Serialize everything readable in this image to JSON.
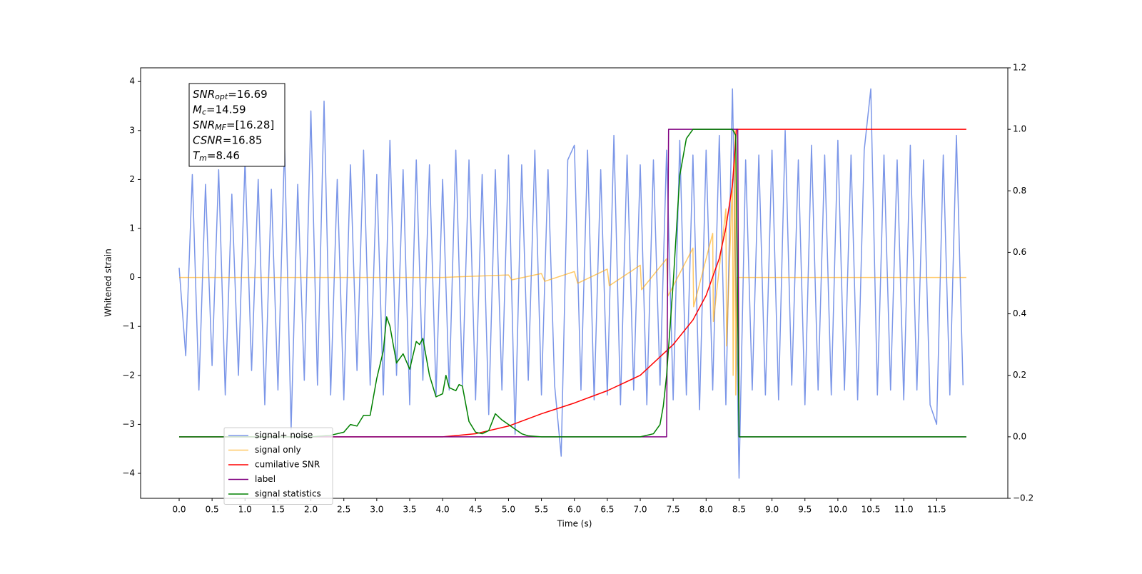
{
  "chart_data": {
    "type": "line",
    "xlabel": "Time (s)",
    "ylabel": "Whitened strain",
    "xlim": [
      -0.585,
      12.58
    ],
    "ylim": [
      -4.51,
      4.28
    ],
    "y2lim": [
      -0.2,
      1.2
    ],
    "xticks": [
      {
        "value": 0,
        "label": "0.0"
      },
      0.5,
      {
        "value": 1,
        "label": "1.0"
      },
      1.5,
      {
        "value": 2,
        "label": "2.0"
      },
      2.5,
      {
        "value": 3,
        "label": "3.0"
      },
      3.5,
      {
        "value": 4,
        "label": "4.0"
      },
      4.5,
      {
        "value": 5,
        "label": "5.0"
      },
      5.5,
      {
        "value": 6,
        "label": "6.0"
      },
      6.5,
      {
        "value": 7,
        "label": "7.0"
      },
      7.5,
      {
        "value": 8,
        "label": "8.0"
      },
      8.5,
      {
        "value": 9,
        "label": "9.0"
      },
      9.5,
      {
        "value": 10,
        "label": "10.0"
      },
      10.5,
      {
        "value": 11,
        "label": "11.0"
      },
      11.5
    ],
    "yticks": [
      {
        "value": -4,
        "label": "−4"
      },
      {
        "value": -3,
        "label": "−3"
      },
      {
        "value": -2,
        "label": "−2"
      },
      {
        "value": -1,
        "label": "−1"
      },
      0,
      1,
      2,
      3,
      4
    ],
    "y2ticks": [
      {
        "value": -0.2,
        "label": "−0.2"
      },
      {
        "value": 0,
        "label": "0.0"
      },
      0.2,
      0.4,
      0.6,
      0.8,
      {
        "value": 1,
        "label": "1.0"
      },
      {
        "value": 1.2,
        "label": "1.2"
      }
    ],
    "legend": "lower left",
    "textbox": [
      {
        "var": "SNR",
        "sub": "opt",
        "text": "=16.69"
      },
      {
        "var": "M",
        "sub": "c",
        "text": "=14.59"
      },
      {
        "var": "SNR",
        "sub": "MF",
        "text": "=[16.28]"
      },
      {
        "var": "CSNR",
        "sub": null,
        "text": "=16.85"
      },
      {
        "var": "T",
        "sub": "m",
        "text": "=8.46"
      }
    ],
    "series": [
      {
        "name": "signal+ noise",
        "color": "#7b96e8",
        "axis": "y",
        "x": [
          0,
          0.1,
          0.2,
          0.3,
          0.4,
          0.5,
          0.6,
          0.7,
          0.8,
          0.9,
          1,
          1.1,
          1.2,
          1.3,
          1.4,
          1.5,
          1.6,
          1.7,
          1.8,
          1.9,
          2,
          2.1,
          2.2,
          2.3,
          2.4,
          2.5,
          2.6,
          2.7,
          2.8,
          2.9,
          3,
          3.1,
          3.2,
          3.3,
          3.4,
          3.5,
          3.6,
          3.7,
          3.8,
          3.9,
          4,
          4.1,
          4.2,
          4.3,
          4.4,
          4.5,
          4.6,
          4.7,
          4.8,
          4.9,
          5,
          5.1,
          5.2,
          5.3,
          5.4,
          5.5,
          5.6,
          5.7,
          5.8,
          5.9,
          6,
          6.1,
          6.2,
          6.3,
          6.4,
          6.5,
          6.6,
          6.7,
          6.8,
          6.9,
          7,
          7.1,
          7.2,
          7.3,
          7.4,
          7.5,
          7.6,
          7.7,
          7.8,
          7.9,
          8,
          8.1,
          8.2,
          8.3,
          8.4,
          8.5,
          8.6,
          8.7,
          8.8,
          8.9,
          9,
          9.1,
          9.2,
          9.3,
          9.4,
          9.5,
          9.6,
          9.7,
          9.8,
          9.9,
          10,
          10.1,
          10.2,
          10.3,
          10.4,
          10.5,
          10.6,
          10.7,
          10.8,
          10.9,
          11,
          11.1,
          11.2,
          11.3,
          11.4,
          11.5,
          11.6,
          11.7,
          11.8,
          11.9
        ],
        "values": [
          0.2,
          -1.6,
          2.1,
          -2.3,
          1.9,
          -1.8,
          2.2,
          -2.4,
          1.7,
          -2.0,
          2.4,
          -1.9,
          2.0,
          -2.6,
          1.8,
          -2.3,
          2.7,
          -3.1,
          1.9,
          -2.1,
          3.4,
          -2.2,
          3.6,
          -2.4,
          2.0,
          -2.5,
          2.3,
          -1.9,
          2.6,
          -2.2,
          2.1,
          -2.4,
          2.8,
          -2.0,
          2.2,
          -2.6,
          2.4,
          -2.1,
          2.3,
          -2.4,
          2.0,
          -2.3,
          2.6,
          -2.2,
          2.4,
          -2.5,
          2.1,
          -2.8,
          2.2,
          -2.3,
          2.5,
          -3.2,
          2.3,
          -2.1,
          2.6,
          -2.4,
          2.2,
          -2.2,
          -3.65,
          2.4,
          2.7,
          -2.3,
          2.6,
          -2.5,
          2.2,
          -2.4,
          2.9,
          -2.6,
          2.5,
          -2.3,
          2.3,
          -2.6,
          2.4,
          -2.2,
          2.6,
          -2.5,
          2.8,
          -2.4,
          2.5,
          -2.7,
          2.6,
          -2.3,
          2.9,
          -2.6,
          3.85,
          -4.1,
          2.4,
          -2.3,
          2.5,
          -2.4,
          2.6,
          -2.5,
          3.0,
          -2.2,
          2.4,
          -2.6,
          2.7,
          -2.3,
          2.5,
          -2.4,
          2.8,
          -2.3,
          2.5,
          -2.5,
          2.6,
          3.85,
          -2.4,
          2.5,
          -2.3,
          2.4,
          -2.5,
          2.7,
          -2.3,
          2.4,
          -2.6,
          -3.0,
          2.5,
          -2.4,
          2.9,
          -2.2
        ]
      },
      {
        "name": "signal only",
        "color": "#ffa500",
        "axis": "y",
        "x": [
          0,
          4.0,
          5.0,
          5.05,
          5.5,
          5.55,
          6.0,
          6.05,
          6.5,
          6.53,
          7.0,
          7.02,
          7.4,
          7.42,
          7.8,
          7.81,
          8.1,
          8.11,
          8.3,
          8.31,
          8.4,
          8.41,
          8.44,
          8.45,
          8.47,
          8.5,
          11.95
        ],
        "values": [
          0,
          0,
          0.05,
          -0.05,
          0.08,
          -0.08,
          0.12,
          -0.12,
          0.17,
          -0.17,
          0.25,
          -0.25,
          0.38,
          -0.38,
          0.6,
          -0.6,
          0.9,
          -0.9,
          1.4,
          -1.4,
          2.0,
          -2.0,
          3.0,
          -2.4,
          0,
          0,
          0
        ]
      },
      {
        "name": "cumilative SNR",
        "color": "#ff0000",
        "axis": "y2",
        "x": [
          0,
          4.0,
          4.5,
          5.0,
          5.5,
          6.0,
          6.5,
          7.0,
          7.5,
          7.8,
          8.0,
          8.2,
          8.3,
          8.4,
          8.46,
          8.47,
          11.95
        ],
        "values": [
          0,
          0,
          0.01,
          0.035,
          0.075,
          0.11,
          0.15,
          0.2,
          0.3,
          0.38,
          0.46,
          0.58,
          0.68,
          0.82,
          1.0,
          1.0,
          1.0
        ]
      },
      {
        "name": "label",
        "color": "#800080",
        "axis": "y2",
        "x": [
          0,
          7.4,
          7.43,
          8.48,
          8.5,
          11.95
        ],
        "values": [
          0,
          0,
          1,
          1,
          0,
          0
        ]
      },
      {
        "name": "signal statistics",
        "color": "#008000",
        "axis": "y2",
        "x": [
          0,
          2.0,
          2.3,
          2.5,
          2.6,
          2.7,
          2.8,
          2.9,
          3.0,
          3.1,
          3.15,
          3.2,
          3.3,
          3.4,
          3.5,
          3.6,
          3.65,
          3.7,
          3.8,
          3.9,
          4.0,
          4.05,
          4.1,
          4.2,
          4.25,
          4.3,
          4.4,
          4.5,
          4.6,
          4.7,
          4.8,
          4.9,
          5.0,
          5.1,
          5.2,
          5.3,
          5.5,
          7.0,
          7.2,
          7.3,
          7.35,
          7.4,
          7.5,
          7.6,
          7.7,
          7.8,
          8.4,
          8.45,
          8.5,
          11.95
        ],
        "values": [
          0,
          0,
          0.005,
          0.015,
          0.04,
          0.035,
          0.07,
          0.07,
          0.19,
          0.28,
          0.39,
          0.36,
          0.24,
          0.27,
          0.22,
          0.31,
          0.3,
          0.32,
          0.2,
          0.13,
          0.14,
          0.2,
          0.16,
          0.15,
          0.17,
          0.165,
          0.05,
          0.015,
          0.01,
          0.02,
          0.075,
          0.055,
          0.04,
          0.025,
          0.01,
          0.003,
          0,
          0,
          0.01,
          0.04,
          0.1,
          0.2,
          0.5,
          0.85,
          0.97,
          1.0,
          1.0,
          0.98,
          0,
          0
        ]
      }
    ]
  }
}
